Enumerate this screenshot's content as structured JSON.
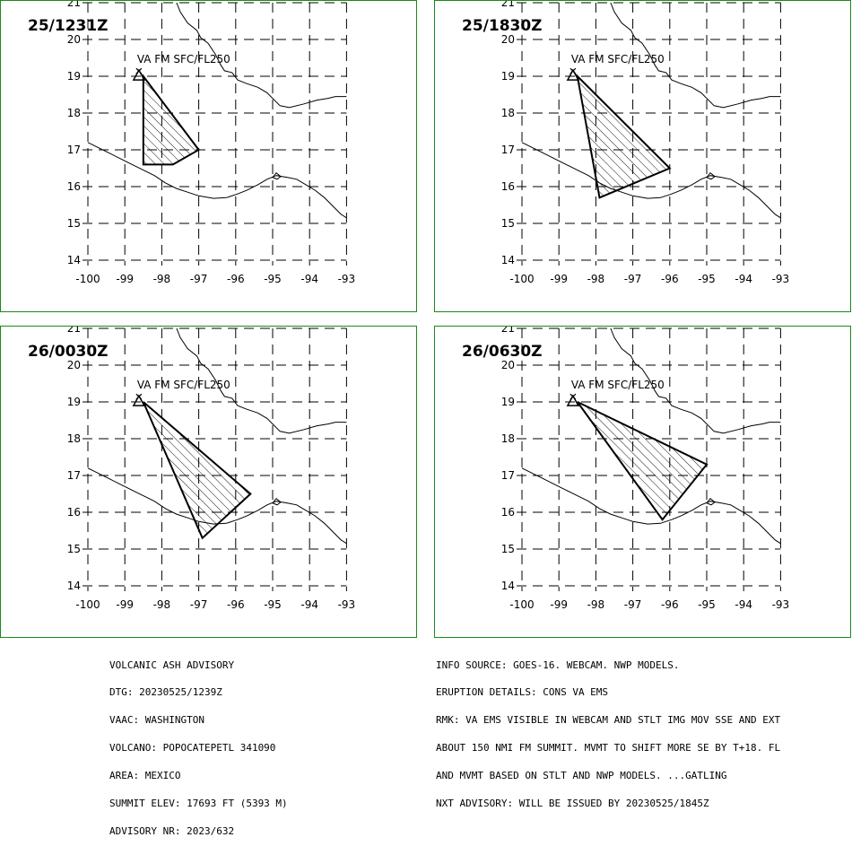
{
  "panels": [
    {
      "time": "25/1231Z",
      "label": "VA FM SFC/FL250",
      "polygon": [
        [
          -98.5,
          19.0
        ],
        [
          -97.0,
          17.0
        ],
        [
          -97.7,
          16.6
        ],
        [
          -98.5,
          16.6
        ]
      ]
    },
    {
      "time": "25/1830Z",
      "label": "VA FM SFC/FL250",
      "polygon": [
        [
          -98.5,
          19.0
        ],
        [
          -96.0,
          16.5
        ],
        [
          -97.9,
          15.7
        ]
      ]
    },
    {
      "time": "26/0030Z",
      "label": "VA FM SFC/FL250",
      "polygon": [
        [
          -98.5,
          19.0
        ],
        [
          -95.6,
          16.5
        ],
        [
          -96.9,
          15.3
        ]
      ]
    },
    {
      "time": "26/0630Z",
      "label": "VA FM SFC/FL250",
      "polygon": [
        [
          -98.5,
          19.0
        ],
        [
          -95.0,
          17.3
        ],
        [
          -96.2,
          15.8
        ]
      ]
    }
  ],
  "axes": {
    "lon_ticks": [
      "-100",
      "-99",
      "-98",
      "-97",
      "-96",
      "-95",
      "-94",
      "-93"
    ],
    "lat_ticks": [
      "21",
      "20",
      "19",
      "18",
      "17",
      "16",
      "15",
      "14"
    ],
    "lon_range": [
      -100,
      -93
    ],
    "lat_range": [
      14,
      21
    ]
  },
  "volcano": {
    "lon": -98.62,
    "lat": 19.02
  },
  "footer_left": [
    "VOLCANIC ASH ADVISORY",
    "DTG: 20230525/1239Z",
    "VAAC: WASHINGTON",
    "VOLCANO: POPOCATEPETL 341090",
    "AREA: MEXICO",
    "SUMMIT ELEV: 17693 FT (5393 M)",
    "ADVISORY NR: 2023/632"
  ],
  "footer_right": [
    "INFO SOURCE: GOES-16. WEBCAM. NWP MODELS.",
    "ERUPTION DETAILS: CONS VA EMS",
    "RMK: VA EMS VISIBLE IN WEBCAM AND STLT IMG MOV SSE AND EXT",
    "ABOUT 150 NMI FM SUMMIT. MVMT TO SHIFT MORE SE BY T+18. FL",
    "AND MVMT BASED ON STLT AND NWP MODELS. ...GATLING",
    "NXT ADVISORY: WILL BE ISSUED BY 20230525/1845Z"
  ],
  "colors": {
    "frame": "#1a8a1a",
    "grid": "#000000",
    "ash_fill_hatch": "#000000"
  }
}
